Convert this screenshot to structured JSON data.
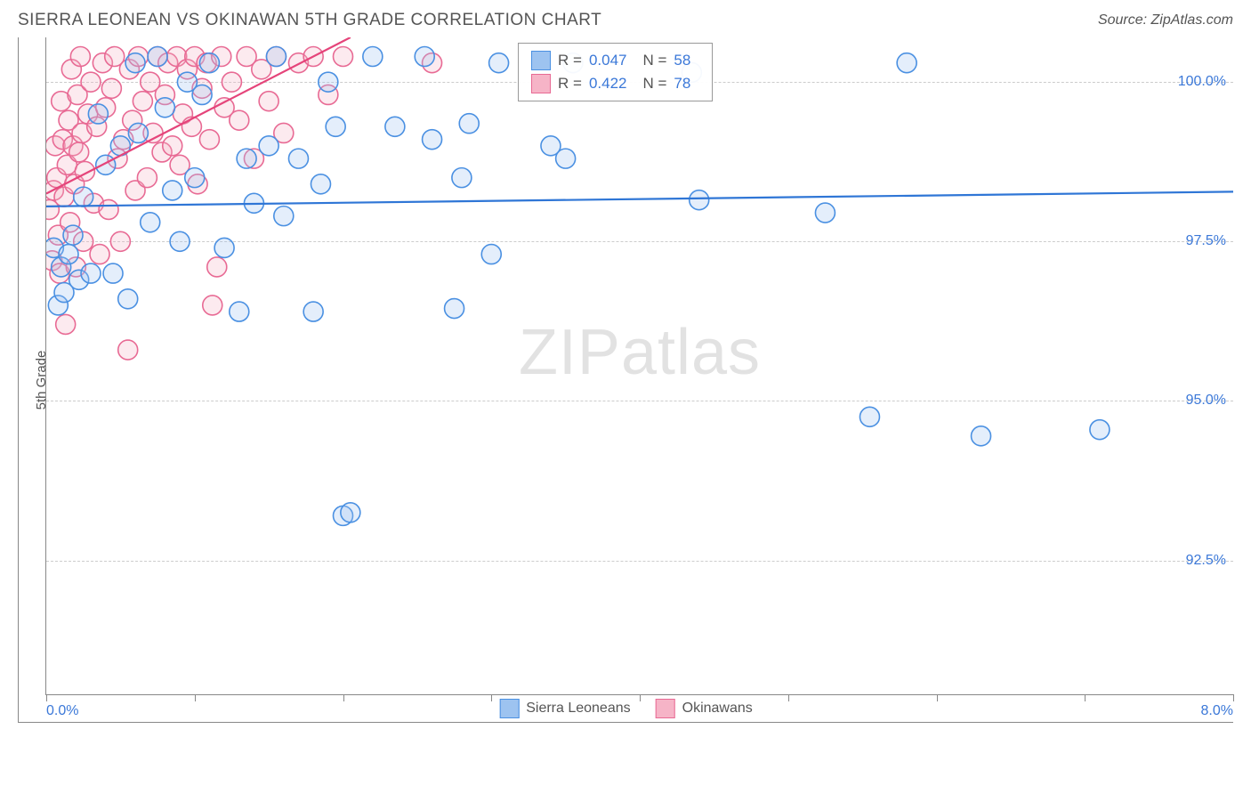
{
  "header": {
    "title": "SIERRA LEONEAN VS OKINAWAN 5TH GRADE CORRELATION CHART",
    "source": "Source: ZipAtlas.com"
  },
  "chart": {
    "type": "scatter",
    "ylabel": "5th Grade",
    "background_color": "#ffffff",
    "grid_color": "#cccccc",
    "border_color": "#888888",
    "xlim": [
      0.0,
      8.0
    ],
    "ylim": [
      90.4,
      100.7
    ],
    "y_ticks": [
      {
        "v": 92.5,
        "label": "92.5%"
      },
      {
        "v": 95.0,
        "label": "95.0%"
      },
      {
        "v": 97.5,
        "label": "97.5%"
      },
      {
        "v": 100.0,
        "label": "100.0%"
      }
    ],
    "x_ticks": [
      0,
      1,
      2,
      3,
      4,
      5,
      6,
      7,
      8
    ],
    "x_tick_labels": {
      "left": "0.0%",
      "right": "8.0%"
    },
    "marker_radius": 11,
    "marker_stroke_width": 1.6,
    "marker_fill_opacity": 0.28,
    "line_width": 2.2,
    "series": [
      {
        "name": "Sierra Leoneans",
        "fill": "#9dc3f0",
        "stroke": "#4a90e2",
        "line_color": "#2f76d6",
        "R": "0.047",
        "N": "58",
        "trend": {
          "x1": 0.0,
          "y1": 98.05,
          "x2": 8.0,
          "y2": 98.28
        },
        "points": [
          [
            0.05,
            97.4
          ],
          [
            0.08,
            96.5
          ],
          [
            0.1,
            97.1
          ],
          [
            0.12,
            96.7
          ],
          [
            0.15,
            97.3
          ],
          [
            0.18,
            97.6
          ],
          [
            0.22,
            96.9
          ],
          [
            0.25,
            98.2
          ],
          [
            0.3,
            97.0
          ],
          [
            0.35,
            99.5
          ],
          [
            0.4,
            98.7
          ],
          [
            0.45,
            97.0
          ],
          [
            0.5,
            99.0
          ],
          [
            0.55,
            96.6
          ],
          [
            0.6,
            100.3
          ],
          [
            0.62,
            99.2
          ],
          [
            0.7,
            97.8
          ],
          [
            0.75,
            100.4
          ],
          [
            0.8,
            99.6
          ],
          [
            0.85,
            98.3
          ],
          [
            0.9,
            97.5
          ],
          [
            0.95,
            100.0
          ],
          [
            1.0,
            98.5
          ],
          [
            1.05,
            99.8
          ],
          [
            1.1,
            100.3
          ],
          [
            1.2,
            97.4
          ],
          [
            1.3,
            96.4
          ],
          [
            1.35,
            98.8
          ],
          [
            1.4,
            98.1
          ],
          [
            1.5,
            99.0
          ],
          [
            1.55,
            100.4
          ],
          [
            1.6,
            97.9
          ],
          [
            1.7,
            98.8
          ],
          [
            1.8,
            96.4
          ],
          [
            1.85,
            98.4
          ],
          [
            1.9,
            100.0
          ],
          [
            1.95,
            99.3
          ],
          [
            2.0,
            93.2
          ],
          [
            2.05,
            93.25
          ],
          [
            2.2,
            100.4
          ],
          [
            2.35,
            99.3
          ],
          [
            2.55,
            100.4
          ],
          [
            2.6,
            99.1
          ],
          [
            2.75,
            96.45
          ],
          [
            2.8,
            98.5
          ],
          [
            2.85,
            99.35
          ],
          [
            3.0,
            97.3
          ],
          [
            3.05,
            100.3
          ],
          [
            3.4,
            99.0
          ],
          [
            3.5,
            98.8
          ],
          [
            3.55,
            100.3
          ],
          [
            4.35,
            100.15
          ],
          [
            4.4,
            98.15
          ],
          [
            5.25,
            97.95
          ],
          [
            5.55,
            94.75
          ],
          [
            5.8,
            100.3
          ],
          [
            6.3,
            94.45
          ],
          [
            7.1,
            94.55
          ]
        ]
      },
      {
        "name": "Okinawans",
        "fill": "#f6b4c7",
        "stroke": "#e86a94",
        "line_color": "#e5447a",
        "R": "0.422",
        "N": "78",
        "trend": {
          "x1": 0.0,
          "y1": 98.25,
          "x2": 2.05,
          "y2": 100.7
        },
        "points": [
          [
            0.02,
            98.0
          ],
          [
            0.04,
            97.2
          ],
          [
            0.05,
            98.3
          ],
          [
            0.06,
            99.0
          ],
          [
            0.07,
            98.5
          ],
          [
            0.08,
            97.6
          ],
          [
            0.09,
            97.0
          ],
          [
            0.1,
            99.7
          ],
          [
            0.11,
            99.1
          ],
          [
            0.12,
            98.2
          ],
          [
            0.13,
            96.2
          ],
          [
            0.14,
            98.7
          ],
          [
            0.15,
            99.4
          ],
          [
            0.16,
            97.8
          ],
          [
            0.17,
            100.2
          ],
          [
            0.18,
            99.0
          ],
          [
            0.19,
            98.4
          ],
          [
            0.2,
            97.1
          ],
          [
            0.21,
            99.8
          ],
          [
            0.22,
            98.9
          ],
          [
            0.23,
            100.4
          ],
          [
            0.24,
            99.2
          ],
          [
            0.25,
            97.5
          ],
          [
            0.26,
            98.6
          ],
          [
            0.28,
            99.5
          ],
          [
            0.3,
            100.0
          ],
          [
            0.32,
            98.1
          ],
          [
            0.34,
            99.3
          ],
          [
            0.36,
            97.3
          ],
          [
            0.38,
            100.3
          ],
          [
            0.4,
            99.6
          ],
          [
            0.42,
            98.0
          ],
          [
            0.44,
            99.9
          ],
          [
            0.46,
            100.4
          ],
          [
            0.48,
            98.8
          ],
          [
            0.5,
            97.5
          ],
          [
            0.52,
            99.1
          ],
          [
            0.55,
            95.8
          ],
          [
            0.56,
            100.2
          ],
          [
            0.58,
            99.4
          ],
          [
            0.6,
            98.3
          ],
          [
            0.62,
            100.4
          ],
          [
            0.65,
            99.7
          ],
          [
            0.68,
            98.5
          ],
          [
            0.7,
            100.0
          ],
          [
            0.72,
            99.2
          ],
          [
            0.75,
            100.4
          ],
          [
            0.78,
            98.9
          ],
          [
            0.8,
            99.8
          ],
          [
            0.82,
            100.3
          ],
          [
            0.85,
            99.0
          ],
          [
            0.88,
            100.4
          ],
          [
            0.9,
            98.7
          ],
          [
            0.92,
            99.5
          ],
          [
            0.95,
            100.2
          ],
          [
            0.98,
            99.3
          ],
          [
            1.0,
            100.4
          ],
          [
            1.02,
            98.4
          ],
          [
            1.05,
            99.9
          ],
          [
            1.08,
            100.3
          ],
          [
            1.1,
            99.1
          ],
          [
            1.12,
            96.5
          ],
          [
            1.15,
            97.1
          ],
          [
            1.18,
            100.4
          ],
          [
            1.2,
            99.6
          ],
          [
            1.25,
            100.0
          ],
          [
            1.3,
            99.4
          ],
          [
            1.35,
            100.4
          ],
          [
            1.4,
            98.8
          ],
          [
            1.45,
            100.2
          ],
          [
            1.5,
            99.7
          ],
          [
            1.55,
            100.4
          ],
          [
            1.6,
            99.2
          ],
          [
            1.7,
            100.3
          ],
          [
            1.8,
            100.4
          ],
          [
            1.9,
            99.8
          ],
          [
            2.0,
            100.4
          ],
          [
            2.6,
            100.3
          ]
        ]
      }
    ],
    "legend_top": {
      "stat_label_color": "#555555",
      "stat_value_color": "#3b78d8"
    },
    "watermark": {
      "zip": "ZIP",
      "atlas": "atlas"
    },
    "axis_label_color": "#555555",
    "tick_label_color": "#3b78d8",
    "tick_fontsize": 16,
    "title_fontsize": 19
  }
}
